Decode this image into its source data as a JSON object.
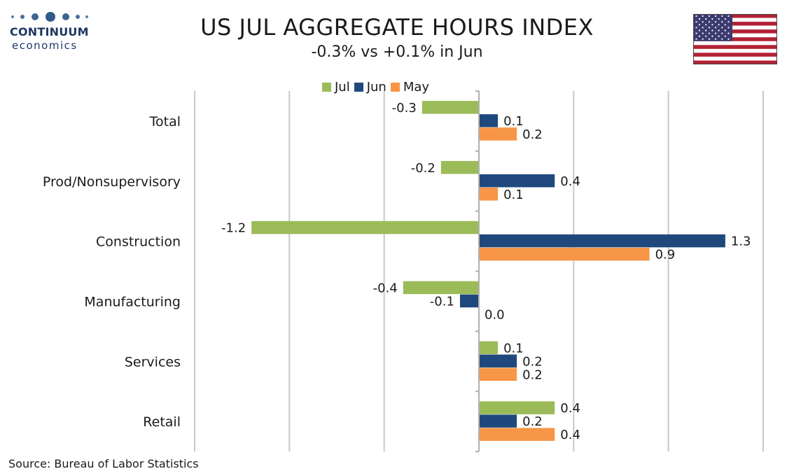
{
  "logo": {
    "word": "CONTINUUM",
    "sub": "economics",
    "color": "#1f3864"
  },
  "title": "US JUL AGGREGATE HOURS INDEX",
  "subtitle": "-0.3% vs +0.1% in Jun",
  "source": "Source: Bureau of Labor Statistics",
  "flag": "us-flag",
  "legend": [
    {
      "name": "Jul",
      "color": "#9bbb59"
    },
    {
      "name": "Jun",
      "color": "#1f497d"
    },
    {
      "name": "May",
      "color": "#f79646"
    }
  ],
  "chart_data": {
    "type": "bar",
    "orientation": "horizontal",
    "title": "US JUL AGGREGATE HOURS INDEX",
    "subtitle": "-0.3% vs +0.1% in Jun",
    "categories": [
      "Total",
      "Prod/Nonsupervisory",
      "Construction",
      "Manufacturing",
      "Services",
      "Retail"
    ],
    "series": [
      {
        "name": "Jul",
        "color": "#9bbb59",
        "values": [
          -0.3,
          -0.2,
          -1.2,
          -0.4,
          0.1,
          0.4
        ],
        "labels": [
          "-0.3",
          "-0.2",
          "-1.2",
          "-0.4",
          "0.1",
          "0.4"
        ]
      },
      {
        "name": "Jun",
        "color": "#1f497d",
        "values": [
          0.1,
          0.4,
          1.3,
          -0.1,
          0.2,
          0.2
        ],
        "labels": [
          "0.1",
          "0.4",
          "1.3",
          "-0.1",
          "0.2",
          "0.2"
        ]
      },
      {
        "name": "May",
        "color": "#f79646",
        "values": [
          0.2,
          0.1,
          0.9,
          0.0,
          0.2,
          0.4
        ],
        "labels": [
          "0.2",
          "0.1",
          "0.9",
          "0.0",
          "0.2",
          "0.4"
        ]
      }
    ],
    "xlim": [
      -1.5,
      1.5
    ],
    "gridlines": true,
    "legend_position": "top"
  }
}
